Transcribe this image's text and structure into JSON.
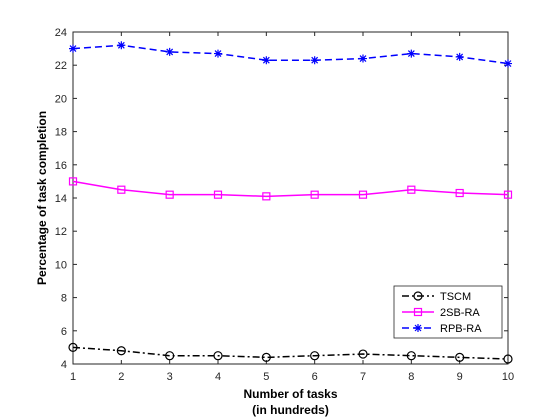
{
  "chart_data": {
    "type": "line",
    "x": [
      1,
      2,
      3,
      4,
      5,
      6,
      7,
      8,
      9,
      10
    ],
    "xlabel": [
      "Number of tasks",
      "(in hundreds)"
    ],
    "ylabel": "Percentage of task completion",
    "xlim": [
      1,
      10
    ],
    "ylim": [
      4,
      24
    ],
    "xticks": [
      1,
      2,
      3,
      4,
      5,
      6,
      7,
      8,
      9,
      10
    ],
    "yticks": [
      4,
      6,
      8,
      10,
      12,
      14,
      16,
      18,
      20,
      22,
      24
    ],
    "grid": false,
    "legend_position": "bottom-right",
    "series": [
      {
        "name": "TSCM",
        "values": [
          5.0,
          4.8,
          4.5,
          4.5,
          4.4,
          4.5,
          4.6,
          4.5,
          4.4,
          4.3
        ],
        "color": "#000000",
        "line_style": "dash-dot",
        "marker": "circle"
      },
      {
        "name": "2SB-RA",
        "values": [
          15.0,
          14.5,
          14.2,
          14.2,
          14.1,
          14.2,
          14.2,
          14.5,
          14.3,
          14.2
        ],
        "color": "#ff00ff",
        "line_style": "solid",
        "marker": "square"
      },
      {
        "name": "RPB-RA",
        "values": [
          23.0,
          23.2,
          22.8,
          22.7,
          22.3,
          22.3,
          22.4,
          22.7,
          22.5,
          22.1
        ],
        "color": "#0000ff",
        "line_style": "dashed",
        "marker": "asterisk"
      }
    ]
  }
}
